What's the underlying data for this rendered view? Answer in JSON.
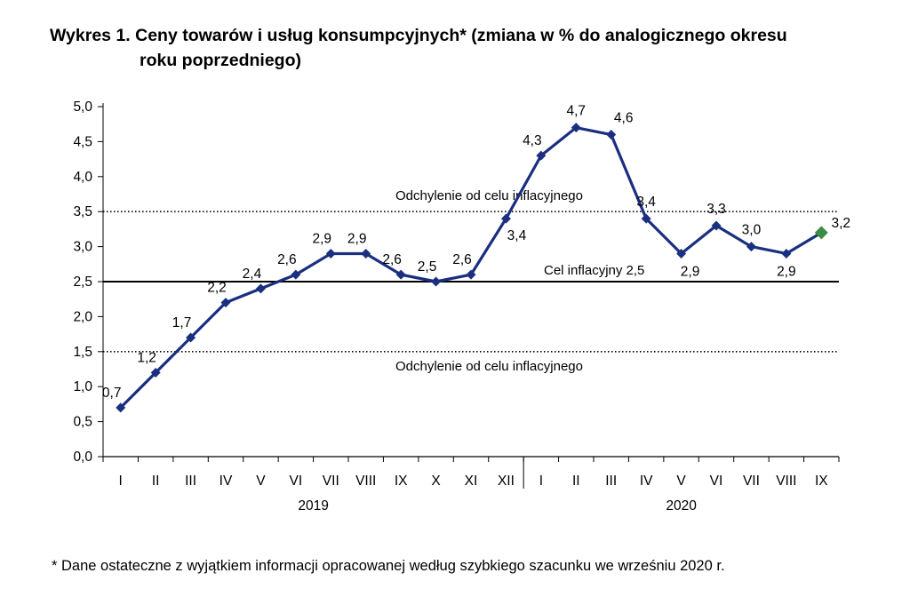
{
  "title_line1": "Wykres 1. Ceny towarów i usług konsumpcyjnych* (zmiana w % do analogicznego okresu",
  "title_line2": "roku poprzedniego)",
  "footnote": "* Dane ostateczne z wyjątkiem informacji opracowanej według szybkiego szacunku we wrześniu 2020 r.",
  "chart_data": {
    "type": "line",
    "x": [
      "I",
      "II",
      "III",
      "IV",
      "V",
      "VI",
      "VII",
      "VIII",
      "IX",
      "X",
      "XI",
      "XII",
      "I",
      "II",
      "III",
      "IV",
      "V",
      "VI",
      "VII",
      "VIII",
      "IX"
    ],
    "year_groups": [
      {
        "label": "2019",
        "start": 0,
        "end": 11
      },
      {
        "label": "2020",
        "start": 12,
        "end": 20
      }
    ],
    "series": [
      {
        "values": [
          0.7,
          1.2,
          1.7,
          2.2,
          2.4,
          2.6,
          2.9,
          2.9,
          2.6,
          2.5,
          2.6,
          3.4,
          4.3,
          4.7,
          4.6,
          3.4,
          2.9,
          3.3,
          3.0,
          2.9,
          3.2
        ],
        "data_labels": [
          "0,7",
          "1,2",
          "1,7",
          "2,2",
          "2,4",
          "2,6",
          "2,9",
          "2,9",
          "2,6",
          "2,5",
          "2,6",
          "3,4",
          "4,3",
          "4,7",
          "4,6",
          "3,4",
          "2,9",
          "3,3",
          "3,0",
          "2,9",
          "3,2"
        ],
        "color": "#1a2f80",
        "flash_estimate_color": "#3c8c46"
      }
    ],
    "y_ticks": [
      0.0,
      0.5,
      1.0,
      1.5,
      2.0,
      2.5,
      3.0,
      3.5,
      4.0,
      4.5,
      5.0
    ],
    "y_tick_labels": [
      "0,0",
      "0,5",
      "1,0",
      "1,5",
      "2,0",
      "2,5",
      "3,0",
      "3,5",
      "4,0",
      "4,5",
      "5,0"
    ],
    "ylim": [
      0,
      5
    ],
    "reference_lines": [
      {
        "value": 2.5,
        "style": "solid",
        "label": "Cel inflacyjny 2,5"
      },
      {
        "value": 3.5,
        "style": "dotted",
        "label": "Odchylenie od celu inflacyjnego"
      },
      {
        "value": 1.5,
        "style": "dotted",
        "label": "Odchylenie od celu inflacyjnego"
      }
    ],
    "grid": false,
    "legend": "none"
  }
}
